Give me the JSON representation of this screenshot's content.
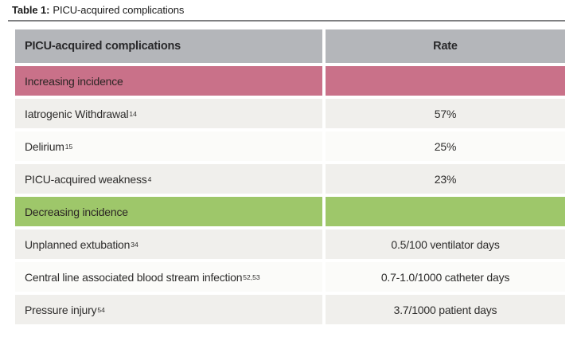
{
  "title": {
    "label": "Table 1:",
    "text": "PICU-acquired complications"
  },
  "table": {
    "headers": [
      "PICU-acquired complications",
      "Rate"
    ],
    "colors": {
      "header_bg": "#b4b6ba",
      "increasing_bg": "#c97189",
      "decreasing_bg": "#9ec76a",
      "row_bg_odd": "#f0efec",
      "row_bg_even": "#fbfbf9"
    },
    "sections": [
      {
        "header": "Increasing incidence",
        "color": "#c97189",
        "rows": [
          {
            "name": "Iatrogenic Withdrawal",
            "sup": "14",
            "rate": "57%"
          },
          {
            "name": "Delirium",
            "sup": "15",
            "rate": "25%"
          },
          {
            "name": "PICU-acquired weakness",
            "sup": "4",
            "rate": "23%"
          }
        ]
      },
      {
        "header": "Decreasing incidence",
        "color": "#9ec76a",
        "rows": [
          {
            "name": "Unplanned extubation",
            "sup": "34",
            "rate": "0.5/100 ventilator days"
          },
          {
            "name": "Central line associated blood stream infection",
            "sup": "52,53",
            "rate": "0.7-1.0/1000 catheter days"
          },
          {
            "name": "Pressure injury",
            "sup": "54",
            "rate": "3.7/1000 patient days"
          }
        ]
      }
    ]
  }
}
